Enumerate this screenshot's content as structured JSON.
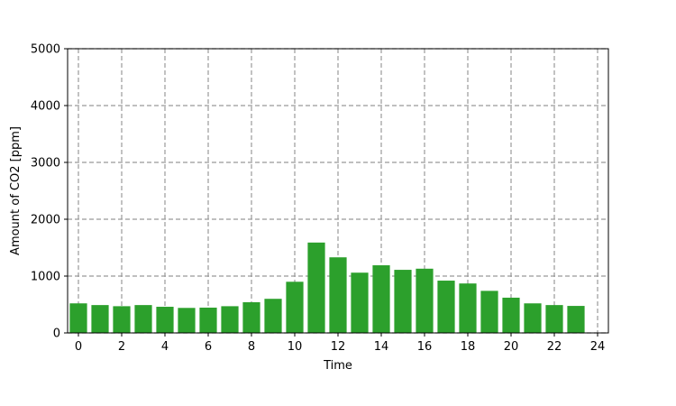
{
  "chart_data": {
    "type": "bar",
    "xlabel": "Time",
    "ylabel": "Amount of CO2 [ppm]",
    "xlim": [
      -0.5,
      24.5
    ],
    "ylim": [
      0,
      5000
    ],
    "xticks": [
      0,
      2,
      4,
      6,
      8,
      10,
      12,
      14,
      16,
      18,
      20,
      22,
      24
    ],
    "yticks": [
      0,
      1000,
      2000,
      3000,
      4000,
      5000
    ],
    "grid": true,
    "bar_color": "#2ca02c",
    "grid_color": "#999999",
    "x": [
      0,
      1,
      2,
      3,
      4,
      5,
      6,
      7,
      8,
      9,
      10,
      11,
      12,
      13,
      14,
      15,
      16,
      17,
      18,
      19,
      20,
      21,
      22,
      23
    ],
    "values": [
      520,
      490,
      470,
      490,
      460,
      440,
      445,
      470,
      540,
      600,
      900,
      1590,
      1330,
      1060,
      1190,
      1110,
      1130,
      920,
      870,
      740,
      620,
      520,
      490,
      475
    ]
  }
}
